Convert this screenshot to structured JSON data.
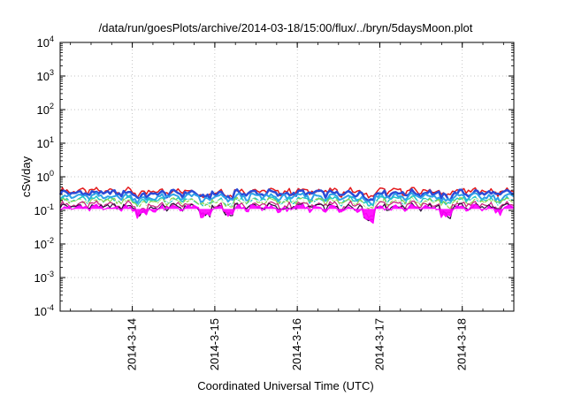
{
  "chart_data": {
    "type": "line",
    "title": "/data/run/goesPlots/archive/2014-03-18/15:00/flux/../bryn/5daysMoon.plot",
    "xlabel": "Coordinated Universal Time (UTC)",
    "ylabel": "cSv/day",
    "y_scale": "log",
    "ylim": [
      0.0001,
      10000
    ],
    "y_ticks": [
      {
        "value": 0.0001,
        "base": "10",
        "exp": "-4"
      },
      {
        "value": 0.001,
        "base": "10",
        "exp": "-3"
      },
      {
        "value": 0.01,
        "base": "10",
        "exp": "-2"
      },
      {
        "value": 0.1,
        "base": "10",
        "exp": "-1"
      },
      {
        "value": 1,
        "base": "10",
        "exp": "0"
      },
      {
        "value": 10,
        "base": "10",
        "exp": "1"
      },
      {
        "value": 100,
        "base": "10",
        "exp": "2"
      },
      {
        "value": 1000,
        "base": "10",
        "exp": "3"
      },
      {
        "value": 10000,
        "base": "10",
        "exp": "4"
      }
    ],
    "xlim": [
      "2014-03-13 03:00",
      "2014-03-18 15:00"
    ],
    "x_ticks": [
      {
        "value": "2014-03-14 00:00",
        "label": "2014-3-14"
      },
      {
        "value": "2014-03-15 00:00",
        "label": "2014-3-15"
      },
      {
        "value": "2014-03-16 00:00",
        "label": "2014-3-16"
      },
      {
        "value": "2014-03-17 00:00",
        "label": "2014-3-17"
      },
      {
        "value": "2014-03-18 00:00",
        "label": "2014-3-18"
      }
    ],
    "grid": true,
    "series_pattern": {
      "x_start": "2014-03-13 03:00",
      "x_end": "2014-03-18 15:00",
      "dips": [
        {
          "at": "2014-03-14 03:00",
          "depth": 0.4
        },
        {
          "at": "2014-03-14 07:00",
          "depth": 0.15
        },
        {
          "at": "2014-03-14 21:00",
          "depth": 0.45
        },
        {
          "at": "2014-03-15 04:00",
          "depth": 0.35
        },
        {
          "at": "2014-03-15 20:00",
          "depth": 0.18
        },
        {
          "at": "2014-03-16 13:00",
          "depth": 0.15
        },
        {
          "at": "2014-03-16 21:00",
          "depth": 0.55
        },
        {
          "at": "2014-03-17 19:00",
          "depth": 0.45
        },
        {
          "at": "2014-03-18 10:00",
          "depth": 0.18
        }
      ]
    },
    "series": [
      {
        "color": "#e41a1c",
        "level": 0.38,
        "width": 1.5
      },
      {
        "color": "#2a4bd7",
        "level": 0.33,
        "width": 2.5
      },
      {
        "color": "#2fa0e8",
        "level": 0.26,
        "width": 2.0
      },
      {
        "color": "#22c7c7",
        "level": 0.21,
        "width": 1.5
      },
      {
        "color": "#8fd44a",
        "level": 0.19,
        "width": 1.2
      },
      {
        "color": "#ffffff",
        "level": 0.18,
        "width": 1.0
      },
      {
        "color": "#c51b7d",
        "level": 0.15,
        "width": 1.2
      },
      {
        "color": "#2b0f3a",
        "level": 0.13,
        "width": 1.2
      },
      {
        "color": "#ff00ff",
        "level": 0.12,
        "width": 1.2,
        "fill": true
      }
    ]
  }
}
